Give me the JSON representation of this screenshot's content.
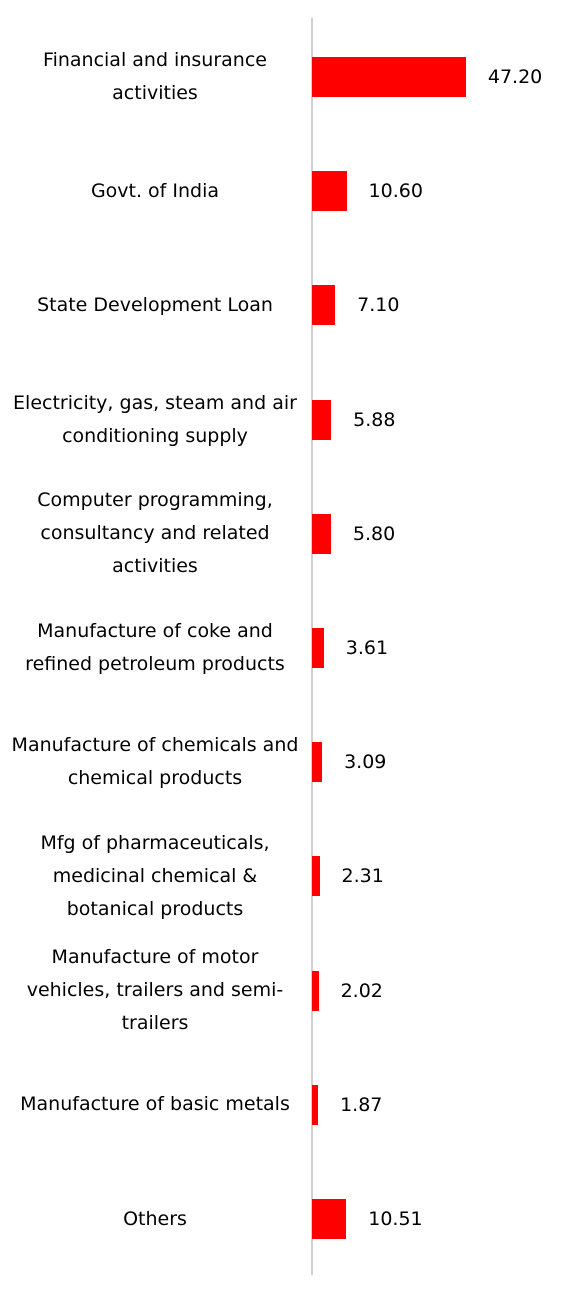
{
  "chart_data": {
    "type": "bar",
    "orientation": "horizontal",
    "categories": [
      "Financial and insurance activities",
      "Govt. of India",
      "State Development Loan",
      "Electricity, gas, steam and air conditioning supply",
      "Computer programming, consultancy and related activities",
      "Manufacture of coke and refined petroleum products",
      "Manufacture of chemicals and chemical products",
      "Mfg of pharmaceuticals, medicinal chemical & botanical products",
      "Manufacture of motor vehicles, trailers and semi-trailers",
      "Manufacture of basic metals",
      "Others"
    ],
    "values": [
      47.2,
      10.6,
      7.1,
      5.88,
      5.8,
      3.61,
      3.09,
      2.31,
      2.02,
      1.87,
      10.51
    ],
    "value_labels": [
      "47.20",
      "10.60",
      "7.10",
      "5.88",
      "5.80",
      "3.61",
      "3.09",
      "2.31",
      "2.02",
      "1.87",
      "10.51"
    ],
    "color": "#ff0000",
    "xlim": [
      0,
      50
    ]
  }
}
